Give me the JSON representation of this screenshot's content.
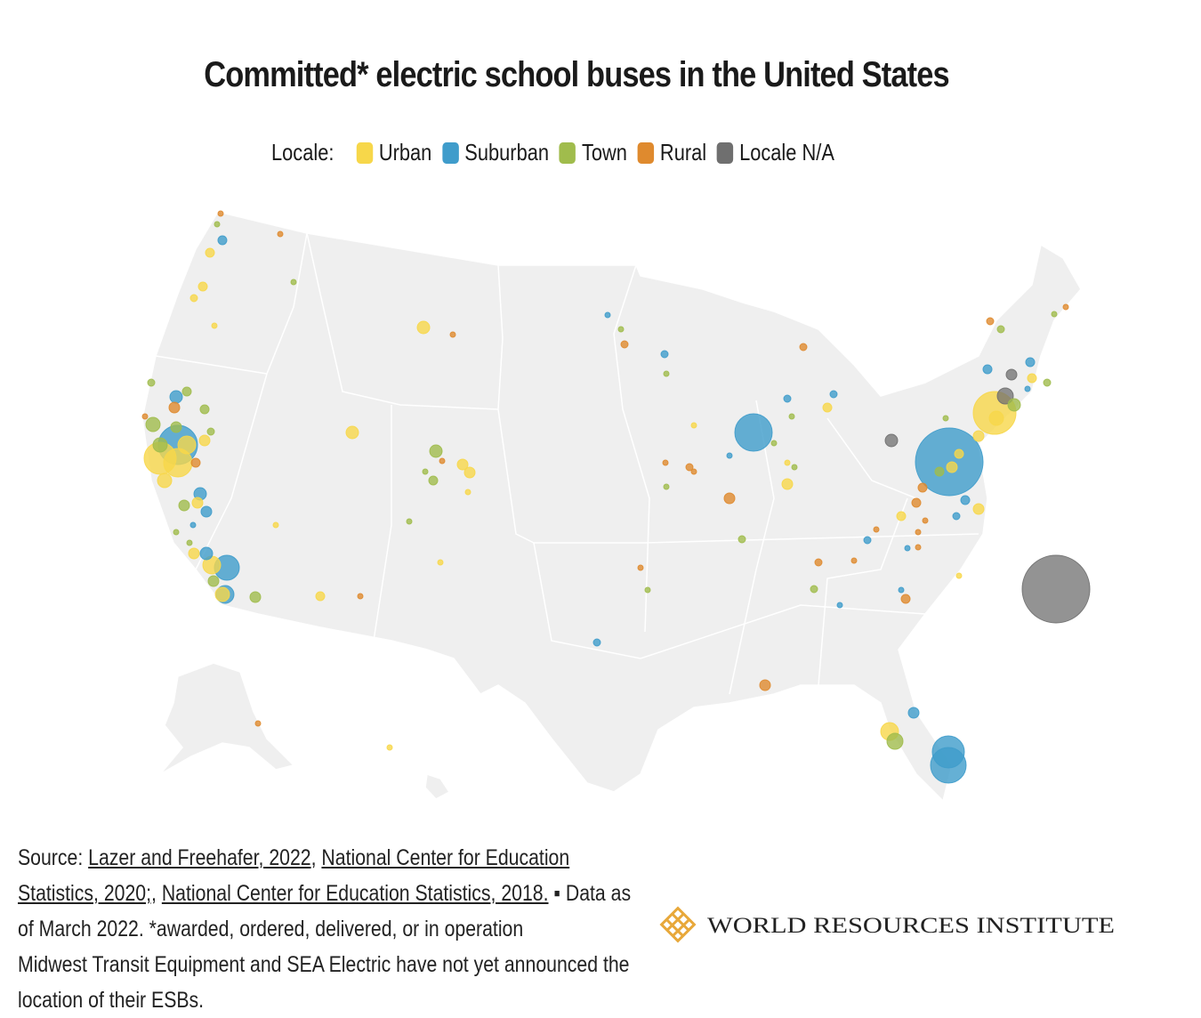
{
  "title": "Committed* electric school buses in the United States",
  "legend": {
    "label": "Locale:",
    "items": [
      {
        "name": "Urban",
        "color": "#f7d74a"
      },
      {
        "name": "Suburban",
        "color": "#3f9ccb"
      },
      {
        "name": "Town",
        "color": "#a0bc4c"
      },
      {
        "name": "Rural",
        "color": "#df8a2e"
      },
      {
        "name": "Locale N/A",
        "color": "#6f6f6f"
      }
    ]
  },
  "source": {
    "parts": [
      {
        "text": "Source: ",
        "link": false
      },
      {
        "text": "Lazer and Freehafer, 2022",
        "link": true
      },
      {
        "text": ", ",
        "link": false
      },
      {
        "text": "National Center for Education Statistics, 2020;",
        "link": true
      },
      {
        "text": ", ",
        "link": false
      },
      {
        "text": "National Center for Education Statistics, 2018.",
        "link": true
      },
      {
        "text": " ▪ Data as of March 2022. *awarded, ordered, delivered, or in operation",
        "link": false
      }
    ],
    "note": "Midwest Transit Equipment and SEA Electric have not yet announced the location of their ESBs."
  },
  "logo": "WORLD RESOURCES INSTITUTE"
}
